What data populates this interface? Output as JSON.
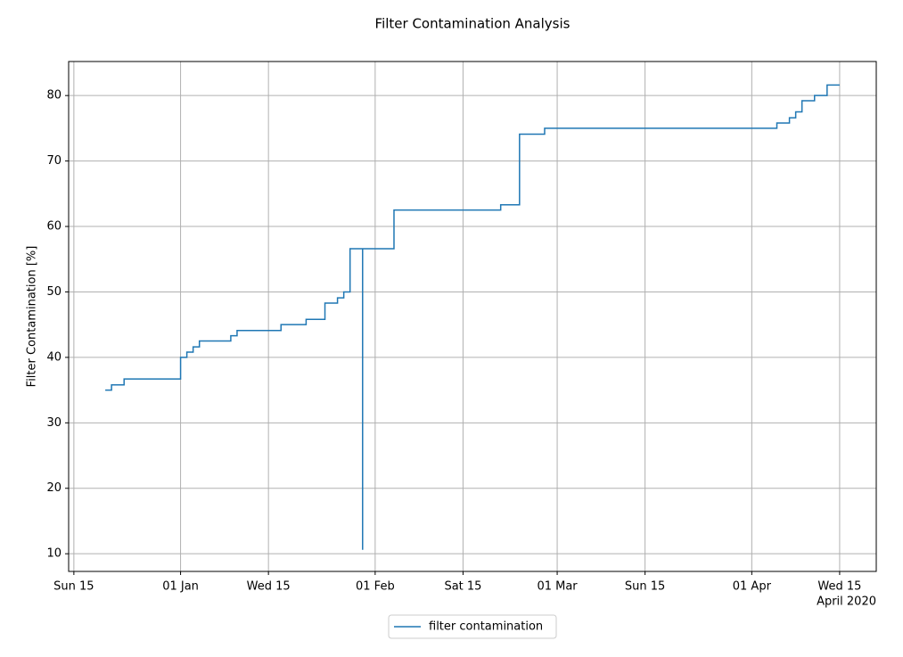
{
  "chart_data": {
    "type": "step",
    "title": "Filter Contamination Analysis",
    "ylabel": "Filter Contamination [%]",
    "x_offset_label": "April 2020",
    "x": [
      "2019-12-20",
      "2019-12-21",
      "2019-12-23",
      "2020-01-01",
      "2020-01-02",
      "2020-01-03",
      "2020-01-04",
      "2020-01-09",
      "2020-01-10",
      "2020-01-17",
      "2020-01-21",
      "2020-01-24",
      "2020-01-26",
      "2020-01-27",
      "2020-01-28",
      "2020-01-30",
      "2020-01-30",
      "2020-02-04",
      "2020-02-21",
      "2020-02-24",
      "2020-02-28",
      "2020-04-05",
      "2020-04-07",
      "2020-04-08",
      "2020-04-09",
      "2020-04-11",
      "2020-04-13",
      "2020-04-15"
    ],
    "series": [
      {
        "name": "filter contamination",
        "color": "#1f77b4",
        "values": [
          35.0,
          35.8,
          36.7,
          40.0,
          40.8,
          41.6,
          42.5,
          43.3,
          44.1,
          45.0,
          45.8,
          48.3,
          49.1,
          50.0,
          56.6,
          10.6,
          56.6,
          62.5,
          63.3,
          74.1,
          75.0,
          75.8,
          76.6,
          77.5,
          79.2,
          80.0,
          81.6,
          81.6
        ]
      }
    ],
    "xlim": [
      "2019-12-14T04:00",
      "2020-04-20T20:00"
    ],
    "xticks": [
      {
        "value": "2019-12-15",
        "label": "Sun 15"
      },
      {
        "value": "2020-01-01",
        "label": "01 Jan"
      },
      {
        "value": "2020-01-15",
        "label": "Wed 15"
      },
      {
        "value": "2020-02-01",
        "label": "01 Feb"
      },
      {
        "value": "2020-02-15",
        "label": "Sat 15"
      },
      {
        "value": "2020-03-01",
        "label": "01 Mar"
      },
      {
        "value": "2020-03-15",
        "label": "Sun 15"
      },
      {
        "value": "2020-04-01",
        "label": "01 Apr"
      },
      {
        "value": "2020-04-15",
        "label": "Wed 15"
      }
    ],
    "ylim": [
      7.3,
      85.2
    ],
    "yticks": [
      10,
      20,
      30,
      40,
      50,
      60,
      70,
      80
    ],
    "grid": true,
    "legend": "lower center"
  }
}
